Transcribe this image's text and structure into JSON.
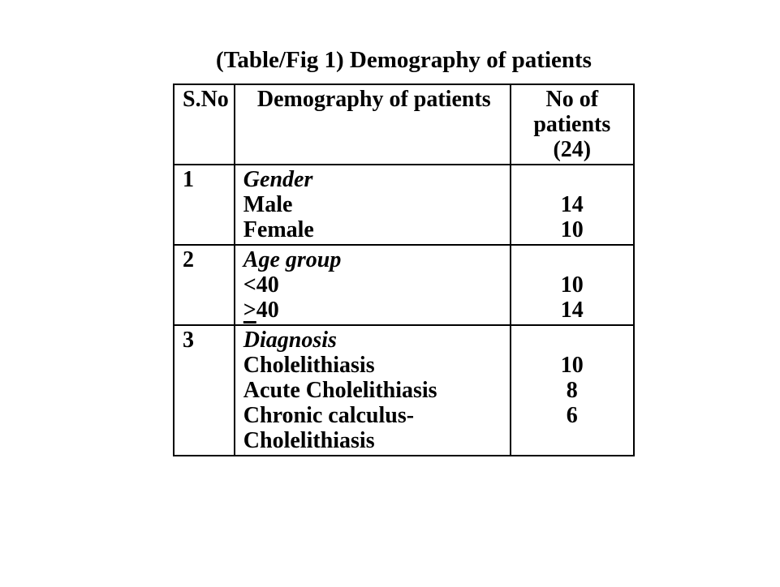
{
  "title": "(Table/Fig 1) Demography of patients",
  "colors": {
    "background": "#ffffff",
    "text": "#000000",
    "border": "#000000"
  },
  "table": {
    "headers": {
      "sno": "S.No",
      "demography": "Demography of patients",
      "no_of_patients_lines": [
        "No of",
        "patients",
        "(24)"
      ]
    },
    "rows": [
      {
        "sno": "1",
        "category": "Gender",
        "items": [
          {
            "label": "Male",
            "value": "14"
          },
          {
            "label": "Female",
            "value": "10"
          }
        ]
      },
      {
        "sno": "2",
        "category": "Age group",
        "items": [
          {
            "label": "<40",
            "value": "10"
          },
          {
            "label": ">40",
            "value": "14",
            "underline_first_char": true
          }
        ]
      },
      {
        "sno": "3",
        "category": "Diagnosis",
        "items": [
          {
            "label": "Cholelithiasis",
            "value": "10"
          },
          {
            "label": "Acute Cholelithiasis",
            "value": "8"
          },
          {
            "label": "Chronic calculus-",
            "value": "6"
          },
          {
            "label": "Cholelithiasis",
            "value": ""
          }
        ]
      }
    ]
  }
}
